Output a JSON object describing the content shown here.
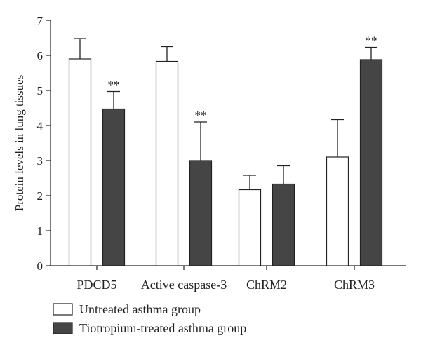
{
  "chart_data": {
    "type": "bar",
    "title": "",
    "xlabel": "",
    "ylabel": "Protein levels in lung tissues",
    "ylim": [
      0,
      7
    ],
    "yticks": [
      0,
      1,
      2,
      3,
      4,
      5,
      6,
      7
    ],
    "grid": false,
    "legend_position": "bottom-left",
    "categories": [
      "PDCD5",
      "Active caspase-3",
      "ChRM2",
      "ChRM3"
    ],
    "series": [
      {
        "name": "Untreated asthma group",
        "color": "#ffffff",
        "values": [
          5.9,
          5.83,
          2.17,
          3.1
        ],
        "errors": [
          0.58,
          0.42,
          0.41,
          1.07
        ],
        "annotations": [
          "",
          "",
          "",
          ""
        ]
      },
      {
        "name": "Tiotropium-treated asthma group",
        "color": "#454545",
        "values": [
          4.47,
          3.0,
          2.33,
          5.88
        ],
        "errors": [
          0.5,
          1.1,
          0.52,
          0.35
        ],
        "annotations": [
          "**",
          "**",
          "",
          "**"
        ]
      }
    ]
  }
}
